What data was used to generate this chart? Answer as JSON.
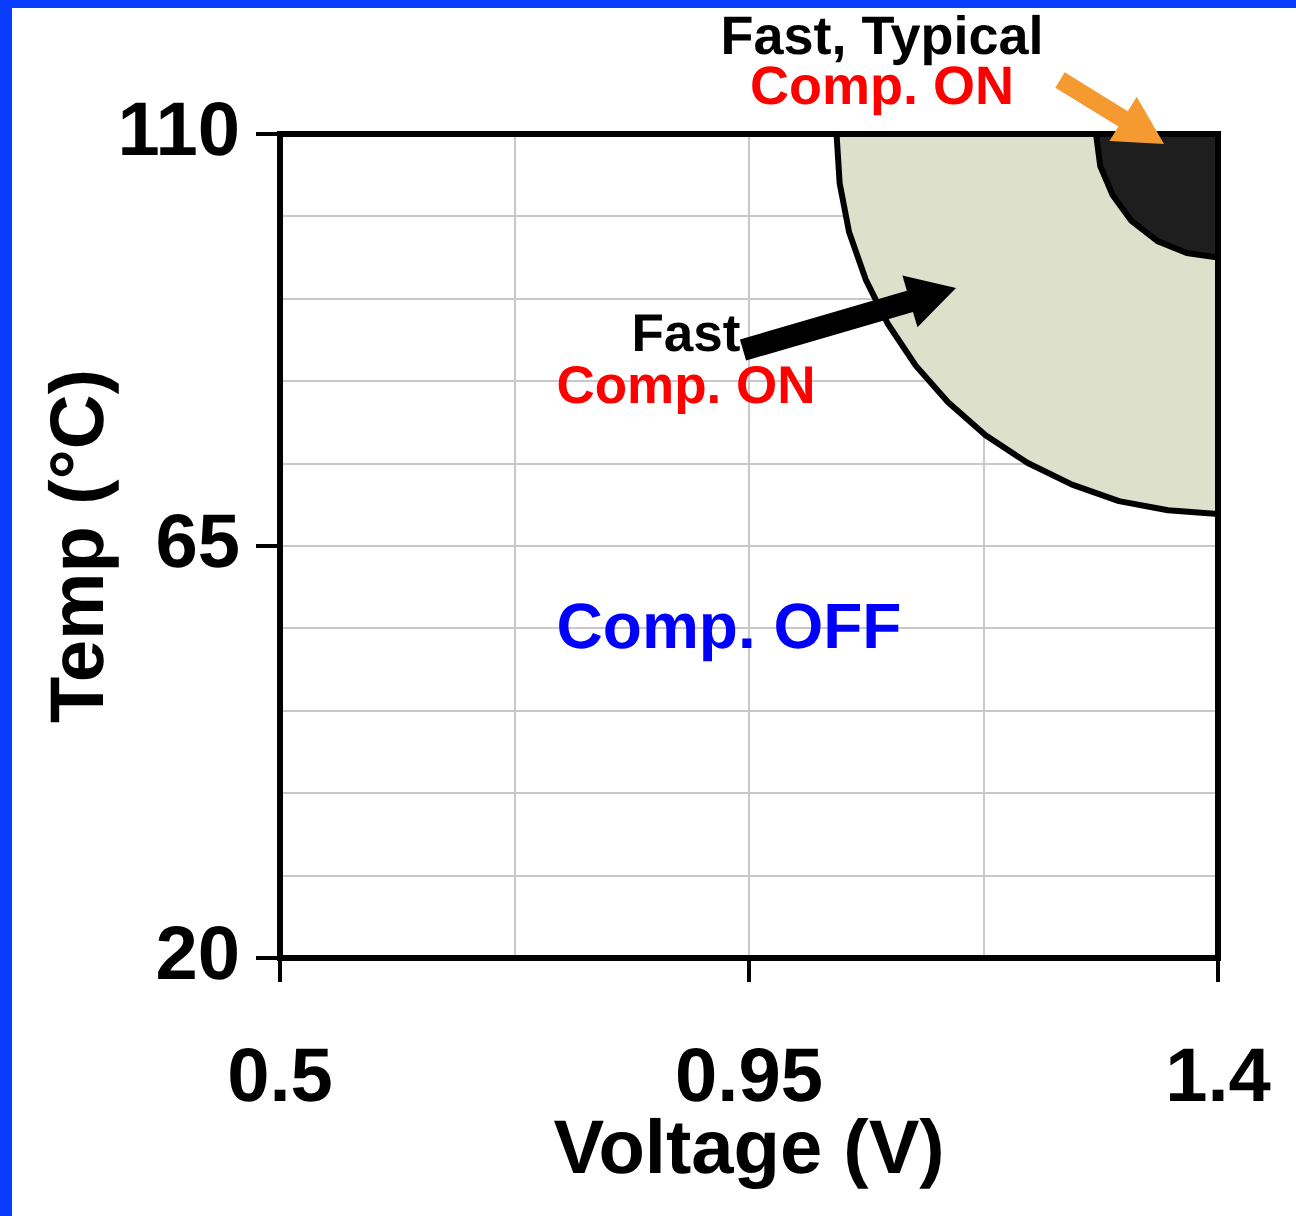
{
  "chart_data": {
    "type": "area",
    "xlabel": "Voltage (V)",
    "ylabel": "Temp (°C)",
    "xlim": [
      0.5,
      1.4
    ],
    "ylim": [
      20,
      110
    ],
    "xticks": [
      0.5,
      {
        "value": 0.725,
        "label": null
      },
      0.95,
      {
        "value": 1.175,
        "label": null
      },
      1.4
    ],
    "yticks": [
      20,
      {
        "value": 29,
        "label": null
      },
      {
        "value": 38,
        "label": null
      },
      {
        "value": 47,
        "label": null
      },
      {
        "value": 56,
        "label": null
      },
      65,
      {
        "value": 74,
        "label": null
      },
      {
        "value": 83,
        "label": null
      },
      {
        "value": 92,
        "label": null
      },
      {
        "value": 101,
        "label": null
      },
      110
    ],
    "grid": true,
    "series": [
      {
        "color": "#dde1cc",
        "x": [
          1.034,
          1.037,
          1.046,
          1.062,
          1.083,
          1.11,
          1.141,
          1.177,
          1.217,
          1.26,
          1.305,
          1.352,
          1.4,
          1.4
        ],
        "values": [
          110,
          104.6,
          99.3,
          94.1,
          89.3,
          84.7,
          80.7,
          77.1,
          74.1,
          71.7,
          69.9,
          68.9,
          68.5,
          110
        ]
      },
      {
        "color": "#1e1e1e",
        "x": [
          1.283,
          1.287,
          1.299,
          1.317,
          1.342,
          1.37,
          1.4,
          1.4
        ],
        "values": [
          110,
          106.5,
          103.3,
          100.5,
          98.3,
          97.0,
          96.5,
          110
        ]
      }
    ],
    "annotations": [
      "Fast, Typical\nComp. ON",
      "Fast\nComp. ON",
      "Comp. OFF"
    ]
  }
}
